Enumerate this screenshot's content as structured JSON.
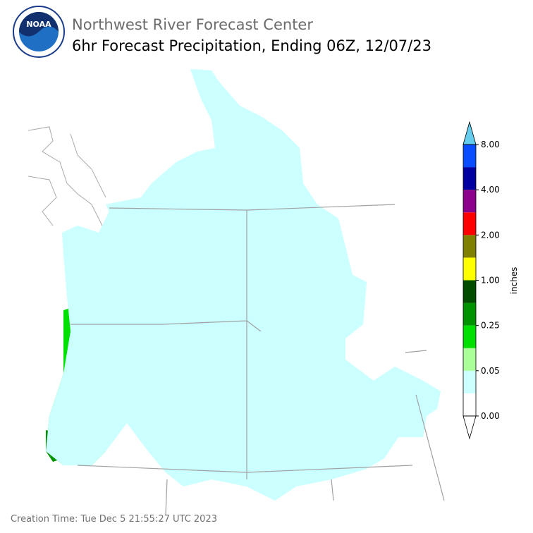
{
  "header": {
    "title": "Northwest River Forecast Center",
    "subtitle": "6hr Forecast Precipitation, Ending 06Z, 12/07/23",
    "logo_text": "NOAA"
  },
  "legend": {
    "unit": "inches",
    "ticks": [
      "0.00",
      "0.05",
      "0.25",
      "1.00",
      "2.00",
      "4.00",
      "8.00"
    ],
    "colors": [
      "#ffffff",
      "#ccffff",
      "#aaff99",
      "#00e000",
      "#009300",
      "#004d00",
      "#ffff00",
      "#7f7f00",
      "#ff0000",
      "#8b008b",
      "#0000a0",
      "#0a4cff"
    ],
    "under_color": "#ffffff",
    "over_color": "#66ccee"
  },
  "footer": {
    "creation_time": "Creation Time: Tue Dec 5 21:55:27 UTC 2023"
  }
}
